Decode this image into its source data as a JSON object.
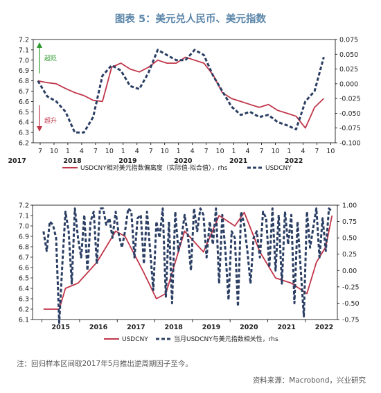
{
  "title": "图表 5：美元兑人民币、美元指数",
  "colors": {
    "usdcny": "#c0364a",
    "dxy": "#2b3e63",
    "arrow_up": "#2f9a2f",
    "arrow_down": "#c0364a",
    "title": "#5b86a9"
  },
  "annotations": {
    "depreciation": "超贬",
    "appreciation": "超升"
  },
  "footnote": "注：回归样本区间取2017年5月推出逆周期因子至今。",
  "source": "资料来源：Macrobond，兴业研究",
  "chart_data": [
    {
      "type": "line",
      "x_tick_labels": [
        "7",
        "10",
        "1",
        "4",
        "7",
        "10",
        "1",
        "4",
        "7",
        "10",
        "1",
        "4",
        "7",
        "10",
        "1",
        "4",
        "7",
        "10",
        "1",
        "4",
        "7",
        "10"
      ],
      "x_year_labels": [
        "2017",
        "2018",
        "2019",
        "2020",
        "2021",
        "2022"
      ],
      "left_ylim": [
        6.2,
        7.2
      ],
      "left_ticks": [
        "6.2",
        "6.3",
        "6.4",
        "6.5",
        "6.6",
        "6.7",
        "6.8",
        "6.9",
        "7.0",
        "7.1",
        "7.2"
      ],
      "right_ylim": [
        -0.1,
        0.075
      ],
      "right_ticks": [
        "-0.100",
        "-0.075",
        "-0.050",
        "-0.025",
        "0.000",
        "0.025",
        "0.050",
        "0.075"
      ],
      "series": [
        {
          "name": "USDCNY相对美元指数偏离度（实际值-拟合值），rhs",
          "axis": "right",
          "style": "solid",
          "x": [
            "2017-06",
            "2017-08",
            "2017-10",
            "2017-12",
            "2018-02",
            "2018-04",
            "2018-06",
            "2018-08",
            "2018-10",
            "2018-12",
            "2019-02",
            "2019-04",
            "2019-06",
            "2019-08",
            "2019-10",
            "2019-12",
            "2020-02",
            "2020-04",
            "2020-06",
            "2020-08",
            "2020-10",
            "2020-12",
            "2021-02",
            "2021-04",
            "2021-06",
            "2021-08",
            "2021-10",
            "2021-12",
            "2022-02",
            "2022-04",
            "2022-06",
            "2022-08"
          ],
          "values": [
            0.005,
            0.002,
            0.0,
            -0.008,
            -0.015,
            -0.02,
            -0.028,
            -0.03,
            0.028,
            0.035,
            0.025,
            0.02,
            0.028,
            0.04,
            0.035,
            0.035,
            0.045,
            0.04,
            0.035,
            0.015,
            -0.015,
            -0.025,
            -0.03,
            -0.035,
            -0.04,
            -0.035,
            -0.045,
            -0.05,
            -0.055,
            -0.075,
            -0.04,
            -0.025
          ]
        },
        {
          "name": "USDCNY",
          "axis": "left",
          "style": "dashed",
          "x": [
            "2017-06",
            "2017-08",
            "2017-10",
            "2017-12",
            "2018-02",
            "2018-04",
            "2018-06",
            "2018-08",
            "2018-10",
            "2018-12",
            "2019-02",
            "2019-04",
            "2019-06",
            "2019-08",
            "2019-10",
            "2019-12",
            "2020-02",
            "2020-04",
            "2020-06",
            "2020-08",
            "2020-10",
            "2020-12",
            "2021-02",
            "2021-04",
            "2021-06",
            "2021-08",
            "2021-10",
            "2021-12",
            "2022-02",
            "2022-04",
            "2022-06",
            "2022-08"
          ],
          "values": [
            6.8,
            6.65,
            6.6,
            6.5,
            6.3,
            6.3,
            6.45,
            6.85,
            6.95,
            6.9,
            6.75,
            6.72,
            6.88,
            7.1,
            7.05,
            7.0,
            7.0,
            7.1,
            7.05,
            6.85,
            6.7,
            6.55,
            6.47,
            6.5,
            6.45,
            6.47,
            6.4,
            6.37,
            6.33,
            6.6,
            6.7,
            7.03
          ]
        }
      ]
    },
    {
      "type": "line",
      "x_year_labels": [
        "2015",
        "2016",
        "2017",
        "2018",
        "2019",
        "2020",
        "2021",
        "2022"
      ],
      "left_ylim": [
        6.1,
        7.2
      ],
      "left_ticks": [
        "6.1",
        "6.2",
        "6.3",
        "6.4",
        "6.5",
        "6.6",
        "6.7",
        "6.8",
        "6.9",
        "7.0",
        "7.1",
        "7.2"
      ],
      "right_ylim": [
        -0.75,
        1.0
      ],
      "right_ticks": [
        "-0.75",
        "-0.50",
        "-0.25",
        "0.00",
        "0.25",
        "0.50",
        "0.75",
        "1.00"
      ],
      "series": [
        {
          "name": "USDCNY",
          "axis": "left",
          "style": "solid",
          "x": [
            "2015-01",
            "2015-06",
            "2015-08",
            "2015-12",
            "2016-06",
            "2016-12",
            "2017-03",
            "2017-09",
            "2018-01",
            "2018-04",
            "2018-10",
            "2019-04",
            "2019-09",
            "2020-02",
            "2020-05",
            "2020-10",
            "2021-03",
            "2021-08",
            "2022-01",
            "2022-04",
            "2022-07",
            "2022-09"
          ],
          "values": [
            6.2,
            6.2,
            6.4,
            6.45,
            6.65,
            6.95,
            6.9,
            6.55,
            6.3,
            6.35,
            6.95,
            6.75,
            7.1,
            7.0,
            7.13,
            6.75,
            6.5,
            6.45,
            6.35,
            6.65,
            6.8,
            7.1
          ]
        },
        {
          "name": "当月USDCNY与美元指数相关性，rhs",
          "axis": "right",
          "style": "dashed",
          "x": [
            "2015-01",
            "2015-02",
            "2015-03",
            "2015-04",
            "2015-05",
            "2015-06",
            "2015-07",
            "2015-08",
            "2015-09",
            "2015-10",
            "2015-11",
            "2015-12",
            "2016-01",
            "2016-02",
            "2016-03",
            "2016-04",
            "2016-05",
            "2016-06",
            "2016-07",
            "2016-08",
            "2016-09",
            "2016-10",
            "2016-11",
            "2016-12",
            "2017-01",
            "2017-02",
            "2017-03",
            "2017-04",
            "2017-05",
            "2017-06",
            "2017-07",
            "2017-08",
            "2017-09",
            "2017-10",
            "2017-11",
            "2017-12",
            "2018-01",
            "2018-02",
            "2018-03",
            "2018-04",
            "2018-05",
            "2018-06",
            "2018-07",
            "2018-08",
            "2018-09",
            "2018-10",
            "2018-11",
            "2018-12",
            "2019-01",
            "2019-02",
            "2019-03",
            "2019-04",
            "2019-05",
            "2019-06",
            "2019-07",
            "2019-08",
            "2019-09",
            "2019-10",
            "2019-11",
            "2019-12",
            "2020-01",
            "2020-02",
            "2020-03",
            "2020-04",
            "2020-05",
            "2020-06",
            "2020-07",
            "2020-08",
            "2020-09",
            "2020-10",
            "2020-11",
            "2020-12",
            "2021-01",
            "2021-02",
            "2021-03",
            "2021-04",
            "2021-05",
            "2021-06",
            "2021-07",
            "2021-08",
            "2021-09",
            "2021-10",
            "2021-12",
            "2022-01",
            "2022-02",
            "2022-03",
            "2022-04",
            "2022-05",
            "2022-06",
            "2022-07",
            "2022-08",
            "2022-09"
          ],
          "values": [
            0.6,
            0.3,
            0.75,
            0.7,
            0.5,
            -0.8,
            0.1,
            0.9,
            0.6,
            -0.2,
            0.95,
            0.5,
            0.2,
            0.85,
            0.0,
            0.75,
            0.9,
            0.1,
            0.95,
            0.95,
            0.7,
            0.8,
            0.5,
            0.9,
            0.55,
            0.35,
            0.6,
            0.95,
            0.9,
            0.2,
            0.8,
            0.85,
            0.1,
            0.9,
            0.3,
            -0.3,
            0.75,
            0.5,
            0.95,
            -0.4,
            0.75,
            -0.5,
            0.9,
            0.3,
            0.5,
            0.85,
            0.55,
            0.0,
            0.95,
            0.6,
            0.95,
            0.85,
            0.2,
            0.75,
            0.4,
            0.95,
            -0.2,
            0.85,
            0.3,
            -0.45,
            0.6,
            0.5,
            -0.55,
            0.9,
            0.7,
            0.3,
            -0.2,
            0.5,
            0.6,
            0.2,
            0.9,
            0.8,
            0.05,
            0.95,
            0.0,
            0.85,
            -0.2,
            0.9,
            0.4,
            0.85,
            -0.5,
            0.75,
            -0.7,
            0.9,
            0.35,
            0.65,
            0.95,
            0.2,
            0.8,
            0.3,
            0.95,
            0.9
          ]
        }
      ]
    }
  ]
}
